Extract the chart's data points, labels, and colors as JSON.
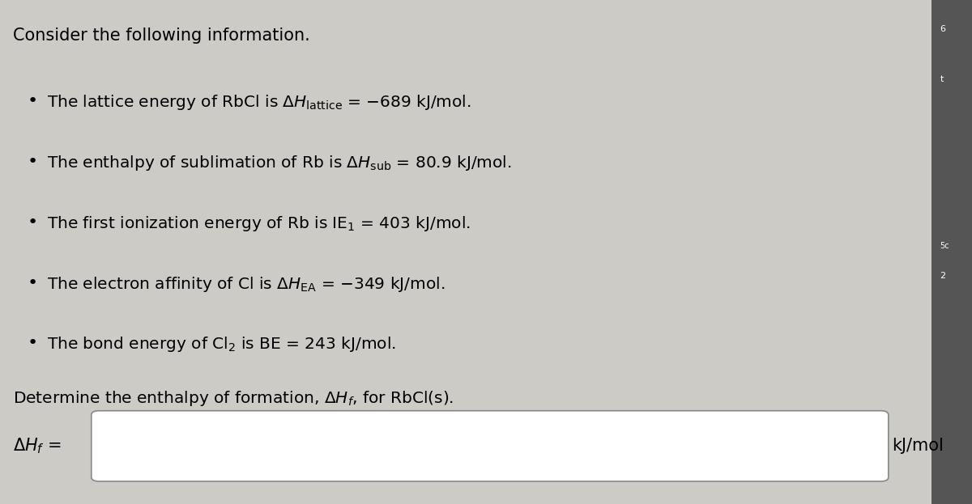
{
  "background_color": "#cccbc6",
  "panel_color": "#e8e7e2",
  "title": "Consider the following information.",
  "bullet_lines": [
    "The lattice energy of RbCl is $\\Delta H_{\\mathrm{lattice}}$ = −689 kJ/mol.",
    "The enthalpy of sublimation of Rb is $\\Delta H_{\\mathrm{sub}}$ = 80.9 kJ/mol.",
    "The first ionization energy of Rb is $\\mathrm{IE}_{1}$ = 403 kJ/mol.",
    "The electron affinity of Cl is $\\Delta H_{\\mathrm{EA}}$ = −349 kJ/mol.",
    "The bond energy of $\\mathrm{Cl}_{2}$ is BE = 243 kJ/mol."
  ],
  "question_line": "Determine the enthalpy of formation, $\\Delta H_{f}$, for RbCl(s).",
  "answer_label": "$\\Delta H_{f}$ =",
  "answer_unit": "kJ/mol",
  "right_strip_color": "#555555",
  "font_size_title": 15,
  "font_size_bullets": 14.5,
  "font_size_answer": 15
}
